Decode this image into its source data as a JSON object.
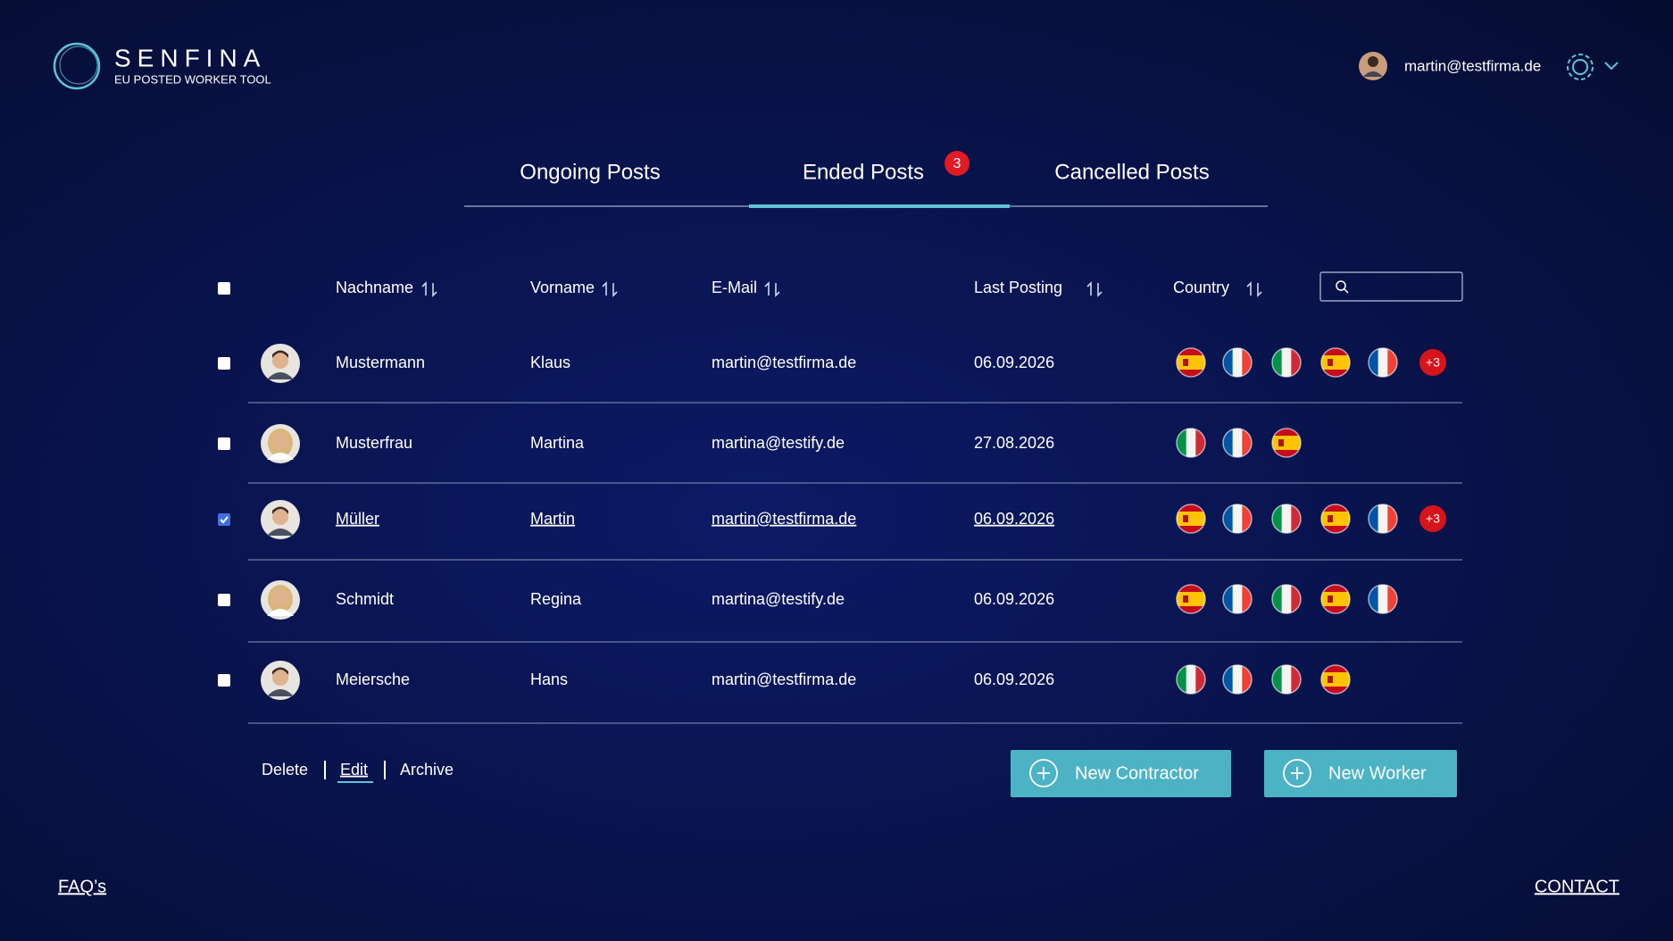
{
  "header": {
    "brand": "SENFINA",
    "tagline": "EU POSTED WORKER TOOL",
    "user_email": "martin@testfirma.de"
  },
  "tabs": [
    {
      "label": "Ongoing Posts",
      "active": false
    },
    {
      "label": "Ended Posts",
      "active": true,
      "badge": 3
    },
    {
      "label": "Cancelled Posts",
      "active": false
    }
  ],
  "table": {
    "columns": [
      "Nachname",
      "Vorname",
      "E-Mail",
      "Last Posting",
      "Country"
    ],
    "rows": [
      {
        "last_name": "Mustermann",
        "first_name": "Klaus",
        "email": "martin@testfirma.de",
        "last_posting": "06.09.2026",
        "selected": false,
        "avatar": "male",
        "flags": [
          "ES",
          "FR",
          "IT",
          "ES",
          "FR"
        ],
        "more": "+3"
      },
      {
        "last_name": "Musterfrau",
        "first_name": "Martina",
        "email": "martina@testify.de",
        "last_posting": "27.08.2026",
        "selected": false,
        "avatar": "female",
        "flags": [
          "IT",
          "FR",
          "ES"
        ]
      },
      {
        "last_name": "Müller",
        "first_name": "Martin",
        "email": "martin@testfirma.de",
        "last_posting": "06.09.2026",
        "selected": true,
        "avatar": "male",
        "flags": [
          "ES",
          "FR",
          "IT",
          "ES",
          "FR"
        ],
        "more": "+3"
      },
      {
        "last_name": "Schmidt",
        "first_name": "Regina",
        "email": "martina@testify.de",
        "last_posting": "06.09.2026",
        "selected": false,
        "avatar": "female",
        "flags": [
          "ES",
          "FR",
          "IT",
          "ES",
          "FR"
        ]
      },
      {
        "last_name": "Meiersche",
        "first_name": "Hans",
        "email": "martin@testfirma.de",
        "last_posting": "06.09.2026",
        "selected": false,
        "avatar": "male",
        "flags": [
          "IT",
          "FR",
          "IT",
          "ES"
        ]
      }
    ]
  },
  "actions": [
    "Delete",
    "Edit",
    "Archive"
  ],
  "buttons": [
    "New Contractor",
    "New Worker"
  ],
  "footer": {
    "faq": "FAQ’s",
    "contact": "CONTACT"
  }
}
